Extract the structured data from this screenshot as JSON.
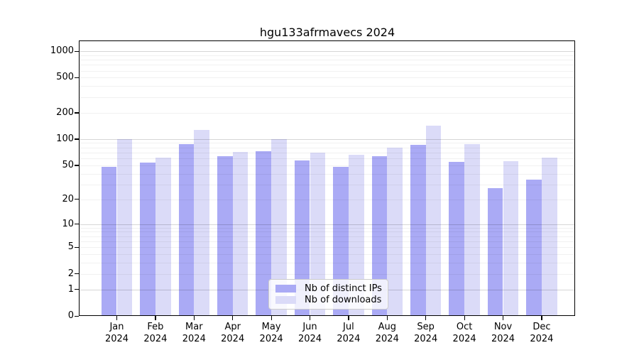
{
  "title": "hgu133afrmavecs 2024",
  "chart_data": {
    "type": "bar",
    "title": "hgu133afrmavecs 2024",
    "categories": [
      "Jan",
      "Feb",
      "Mar",
      "Apr",
      "May",
      "Jun",
      "Jul",
      "Aug",
      "Sep",
      "Oct",
      "Nov",
      "Dec"
    ],
    "x_tick_year": "2024",
    "series": [
      {
        "name": "Nb of distinct IPs",
        "color": "#aaaaf5",
        "values": [
          48,
          54,
          88,
          63,
          72,
          57,
          48,
          64,
          86,
          55,
          27,
          34
        ]
      },
      {
        "name": "Nb of downloads",
        "color": "#dbdbf8",
        "values": [
          100,
          61,
          127,
          71,
          99,
          70,
          66,
          79,
          143,
          87,
          56,
          61
        ]
      }
    ],
    "y_axis": {
      "scale": "log1p",
      "ticks": [
        1000,
        500,
        200,
        100,
        50,
        20,
        10,
        5,
        2,
        1,
        0
      ],
      "range": [
        0,
        1300
      ]
    },
    "grid": true,
    "legend_position": "lower-center"
  }
}
